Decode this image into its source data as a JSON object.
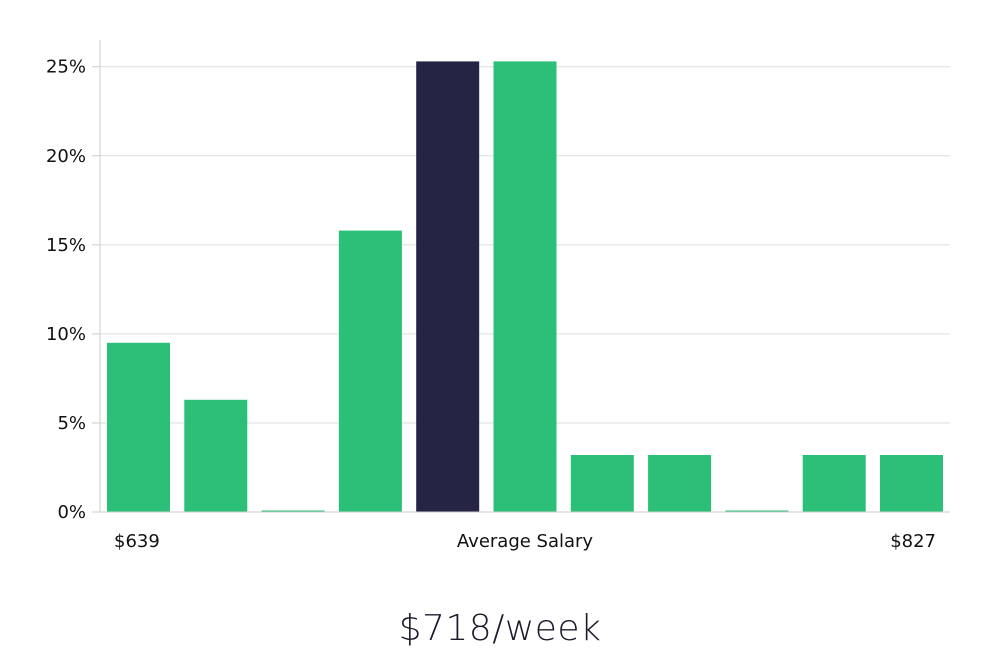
{
  "chart_data": {
    "type": "bar",
    "categories": [
      "",
      "",
      "",
      "",
      "",
      "",
      "",
      "",
      "",
      "",
      ""
    ],
    "values": [
      9.5,
      6.3,
      0,
      15.8,
      25.3,
      25.3,
      3.2,
      3.2,
      0,
      3.2,
      3.2
    ],
    "highlight_index": 4,
    "ylim": [
      0,
      26.5
    ],
    "yticks": [
      0,
      5,
      10,
      15,
      20,
      25
    ],
    "ytick_labels": [
      "0%",
      "5%",
      "10%",
      "15%",
      "20%",
      "25%"
    ],
    "grid": true,
    "x_range_labels": {
      "min": "$639",
      "center": "Average Salary",
      "max": "$827"
    },
    "colors": {
      "bar": "#2bbf77",
      "highlight": "#262445",
      "grid": "#dddddd",
      "axis": "#cccccc"
    }
  },
  "summary": {
    "value": "$718/week"
  }
}
